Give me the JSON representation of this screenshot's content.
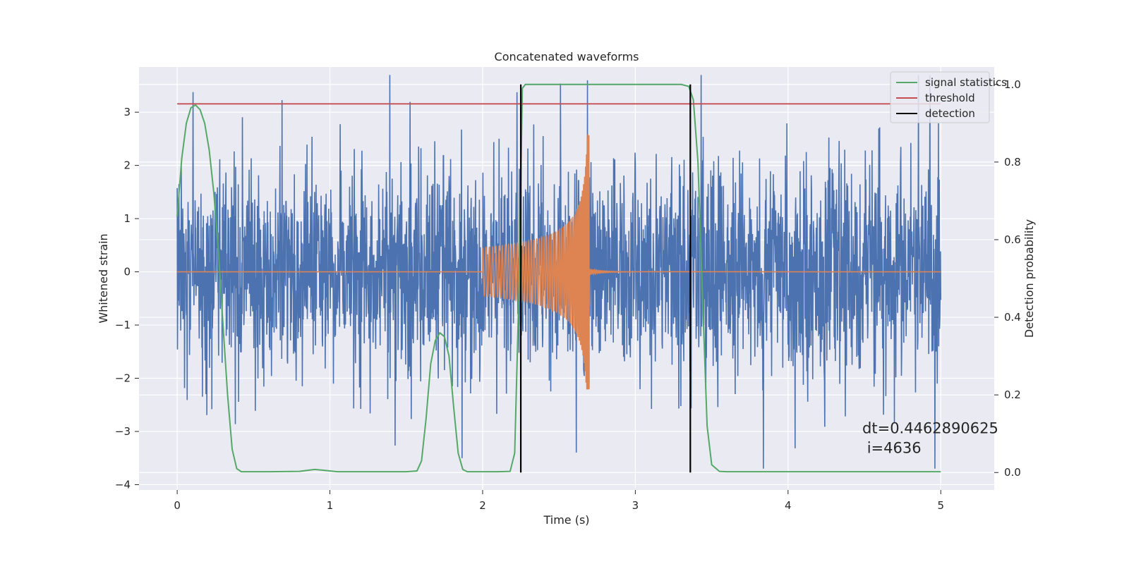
{
  "chart_data": {
    "type": "line",
    "title": "Concatenated waveforms",
    "xlabel": "Time (s)",
    "ylabel": "Whitened strain",
    "y2label": "Detection probability",
    "xlim": [
      -0.25,
      5.35
    ],
    "ylim": [
      -4.1,
      3.85
    ],
    "y2lim": [
      -0.045,
      1.045
    ],
    "xticks": [
      0,
      1,
      2,
      3,
      4,
      5
    ],
    "yticks": [
      -4,
      -3,
      -2,
      -1,
      0,
      1,
      2,
      3
    ],
    "y2ticks": [
      0.0,
      0.2,
      0.4,
      0.6,
      0.8,
      1.0
    ],
    "xtick_labels": [
      "0",
      "1",
      "2",
      "3",
      "4",
      "5"
    ],
    "ytick_labels": [
      "−4",
      "−3",
      "−2",
      "−1",
      "0",
      "1",
      "2",
      "3"
    ],
    "y2tick_labels": [
      "0.0",
      "0.2",
      "0.4",
      "0.6",
      "0.8",
      "1.0"
    ],
    "grid": true,
    "legend_position": "top-right",
    "legend": [
      {
        "label": "signal statistics",
        "color": "#55a868"
      },
      {
        "label": "threshold",
        "color": "#c44e52"
      },
      {
        "label": "detection",
        "color": "#000000"
      }
    ],
    "series": [
      {
        "kind": "noise",
        "color": "#4c72b0",
        "x_range": [
          0,
          5
        ],
        "envelope": 1.35,
        "max_abs": 3.7
      },
      {
        "kind": "chirp",
        "color": "#dd8452",
        "x_range": [
          0,
          5
        ],
        "chirp_start": 2.0,
        "chirp_peak": 2.7,
        "start_amplitude": 0.45,
        "peak_amplitude": 2.6,
        "min_amplitude": -2.2
      },
      {
        "name": "signal statistics",
        "color": "#55a868",
        "axis": "y2",
        "x": [
          0.0,
          0.03,
          0.06,
          0.09,
          0.12,
          0.15,
          0.18,
          0.21,
          0.24,
          0.27,
          0.3,
          0.33,
          0.36,
          0.39,
          0.42,
          0.6,
          0.8,
          0.9,
          0.95,
          1.05,
          1.2,
          1.5,
          1.57,
          1.6,
          1.63,
          1.66,
          1.69,
          1.72,
          1.75,
          1.78,
          1.81,
          1.84,
          1.87,
          1.9,
          2.0,
          2.1,
          2.18,
          2.21,
          2.24,
          2.26,
          2.28,
          2.3,
          2.4,
          2.6,
          3.0,
          3.3,
          3.35,
          3.38,
          3.41,
          3.44,
          3.47,
          3.5,
          3.55,
          3.6,
          4.0,
          4.5,
          5.0
        ],
        "y": [
          0.66,
          0.81,
          0.9,
          0.94,
          0.947,
          0.935,
          0.9,
          0.83,
          0.72,
          0.57,
          0.38,
          0.2,
          0.06,
          0.01,
          0.002,
          0.002,
          0.003,
          0.008,
          0.006,
          0.002,
          0.002,
          0.002,
          0.004,
          0.03,
          0.14,
          0.28,
          0.34,
          0.36,
          0.35,
          0.3,
          0.17,
          0.05,
          0.008,
          0.002,
          0.002,
          0.002,
          0.003,
          0.05,
          0.5,
          0.99,
          1.0,
          1.0,
          1.0,
          1.0,
          1.0,
          1.0,
          0.995,
          0.96,
          0.8,
          0.45,
          0.12,
          0.02,
          0.003,
          0.002,
          0.002,
          0.002,
          0.002
        ]
      },
      {
        "name": "threshold",
        "color": "#c44e52",
        "axis": "y2",
        "x": [
          0,
          5
        ],
        "y": [
          0.95,
          0.95
        ]
      }
    ],
    "detections": {
      "color": "#000000",
      "axis": "y2",
      "x": [
        2.25,
        3.36
      ],
      "y_range": [
        0.0,
        1.0
      ]
    },
    "annotation": {
      "text": "dt=0.4462890625\n i=4636",
      "x": 4.5,
      "y": -3.3
    }
  }
}
